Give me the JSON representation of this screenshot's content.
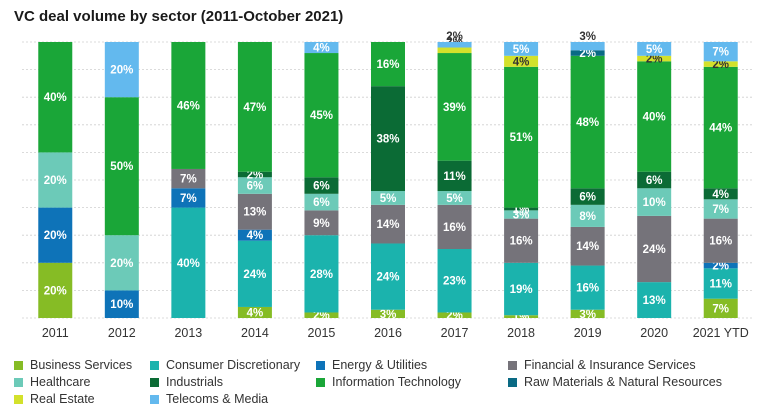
{
  "chart_data": {
    "type": "bar",
    "stacked": true,
    "title": "VC deal volume by sector (2011-October 2021)",
    "xlabel": "",
    "ylabel": "",
    "ylim": [
      0,
      100
    ],
    "grid": true,
    "legend_position": "bottom",
    "categories": [
      "2011",
      "2012",
      "2013",
      "2014",
      "2015",
      "2016",
      "2017",
      "2018",
      "2019",
      "2020",
      "2021 YTD"
    ],
    "series": [
      {
        "name": "Business Services",
        "color": "#86bc25",
        "values": [
          20,
          0,
          0,
          4,
          2,
          3,
          2,
          1,
          3,
          0,
          7
        ],
        "labels": [
          "20%",
          "",
          "",
          "4%",
          "2%",
          "3%",
          "2%",
          "1%",
          "3%",
          "",
          "7%"
        ]
      },
      {
        "name": "Consumer Discretionary",
        "color": "#1bb3ad",
        "values": [
          0,
          0,
          40,
          24,
          28,
          24,
          23,
          19,
          16,
          13,
          11
        ],
        "labels": [
          "",
          "",
          "40%",
          "24%",
          "28%",
          "24%",
          "23%",
          "19%",
          "16%",
          "13%",
          "11%"
        ]
      },
      {
        "name": "Energy & Utilities",
        "color": "#0e73b8",
        "values": [
          20,
          10,
          7,
          4,
          0,
          0,
          0,
          0,
          0,
          0,
          2
        ],
        "labels": [
          "20%",
          "10%",
          "7%",
          "4%",
          "",
          "",
          "",
          "",
          "",
          "",
          "2%"
        ]
      },
      {
        "name": "Financial & Insurance Services",
        "color": "#75737a",
        "values": [
          0,
          0,
          7,
          13,
          9,
          14,
          16,
          16,
          14,
          24,
          16
        ],
        "labels": [
          "",
          "",
          "7%",
          "13%",
          "9%",
          "14%",
          "16%",
          "16%",
          "14%",
          "24%",
          "16%"
        ]
      },
      {
        "name": "Healthcare",
        "color": "#6ccab8",
        "values": [
          20,
          20,
          0,
          6,
          6,
          5,
          5,
          3,
          8,
          10,
          7
        ],
        "labels": [
          "20%",
          "20%",
          "",
          "6%",
          "6%",
          "5%",
          "5%",
          "3%",
          "8%",
          "10%",
          "7%"
        ]
      },
      {
        "name": "Industrials",
        "color": "#0b6b35",
        "values": [
          0,
          0,
          0,
          2,
          6,
          38,
          11,
          1,
          6,
          6,
          4
        ],
        "labels": [
          "",
          "",
          "",
          "2%",
          "6%",
          "38%",
          "11%",
          "1%",
          "6%",
          "6%",
          "4%"
        ]
      },
      {
        "name": "Information Technology",
        "color": "#1aa638",
        "values": [
          40,
          50,
          46,
          47,
          45,
          16,
          39,
          51,
          48,
          40,
          44
        ],
        "labels": [
          "40%",
          "50%",
          "46%",
          "47%",
          "45%",
          "16%",
          "39%",
          "51%",
          "48%",
          "40%",
          "44%"
        ]
      },
      {
        "name": "Raw Materials & Natural Resources",
        "color": "#0a6a84",
        "values": [
          0,
          0,
          0,
          0,
          0,
          0,
          0,
          0,
          2,
          0,
          0
        ],
        "labels": [
          "",
          "",
          "",
          "",
          "",
          "",
          "",
          "",
          "2%",
          "",
          ""
        ]
      },
      {
        "name": "Real Estate",
        "color": "#d3e12b",
        "values": [
          0,
          0,
          0,
          0,
          0,
          0,
          2,
          4,
          0,
          2,
          2
        ],
        "labels": [
          "",
          "",
          "",
          "",
          "",
          "",
          "2%",
          "4%",
          "",
          "2%",
          "2%"
        ]
      },
      {
        "name": "Telecoms & Media",
        "color": "#63b9ee",
        "values": [
          0,
          20,
          0,
          0,
          4,
          0,
          2,
          5,
          3,
          5,
          7
        ],
        "labels": [
          "",
          "20%",
          "",
          "",
          "4%",
          "",
          "2%",
          "5%",
          "3%",
          "5%",
          "7%"
        ]
      }
    ]
  }
}
